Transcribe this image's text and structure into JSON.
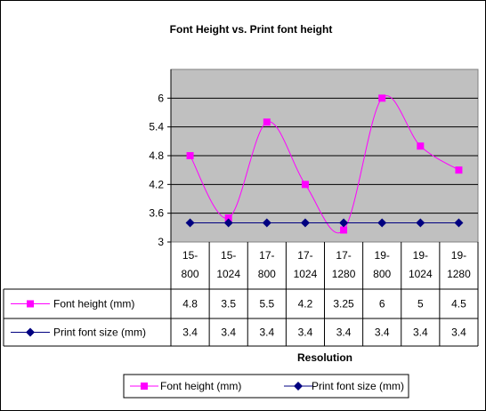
{
  "chart_data": {
    "type": "line",
    "title": "Font Height vs. Print font height",
    "xlabel": "Resolution",
    "ylabel": "",
    "ylim": [
      3,
      6.6
    ],
    "yticks": [
      "3",
      "3.6",
      "4.2",
      "4.8",
      "5.4",
      "6"
    ],
    "categories": [
      [
        "15-",
        "800"
      ],
      [
        "15-",
        "1024"
      ],
      [
        "17-",
        "800"
      ],
      [
        "17-",
        "1024"
      ],
      [
        "17-",
        "1280"
      ],
      [
        "19-",
        "800"
      ],
      [
        "19-",
        "1024"
      ],
      [
        "19-",
        "1280"
      ]
    ],
    "series": [
      {
        "name": "Font height (mm)",
        "values": [
          4.8,
          3.5,
          5.5,
          4.2,
          3.25,
          6,
          5,
          4.5
        ],
        "labels": [
          "4.8",
          "3.5",
          "5.5",
          "4.2",
          "3.25",
          "6",
          "5",
          "4.5"
        ],
        "color": "#FF00FF",
        "marker": "square",
        "smooth": true
      },
      {
        "name": "Print font size (mm)",
        "values": [
          3.4,
          3.4,
          3.4,
          3.4,
          3.4,
          3.4,
          3.4,
          3.4
        ],
        "labels": [
          "3.4",
          "3.4",
          "3.4",
          "3.4",
          "3.4",
          "3.4",
          "3.4",
          "3.4"
        ],
        "color": "#000080",
        "marker": "diamond",
        "smooth": false
      }
    ],
    "plot_background": "#C0C0C0",
    "grid": "horizontal",
    "legend_position": "bottom",
    "data_table": true
  }
}
